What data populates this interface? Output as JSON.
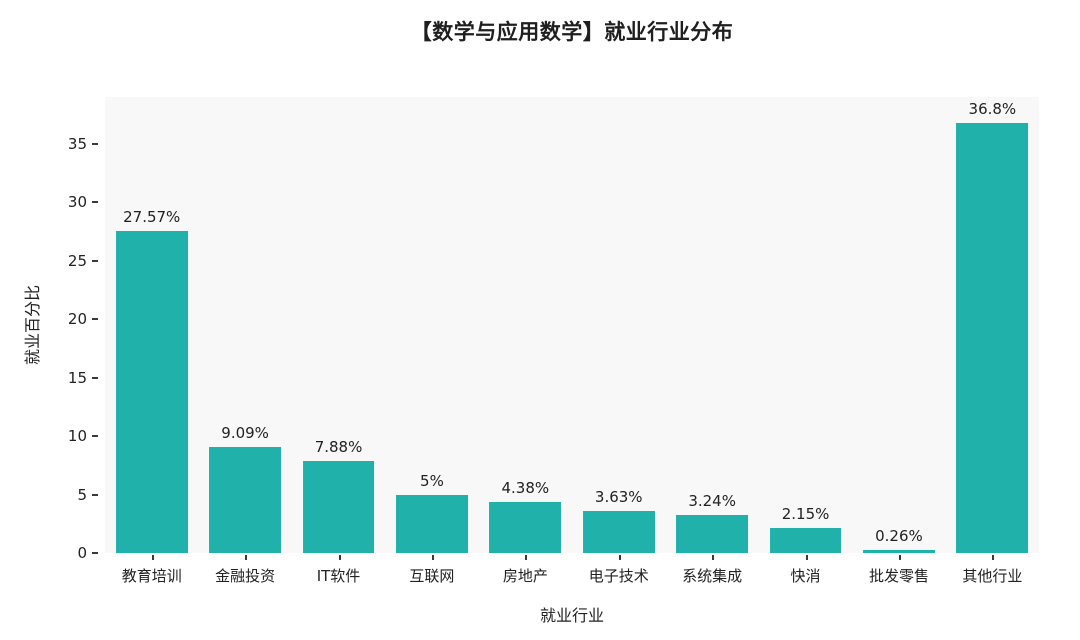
{
  "chart_data": {
    "type": "bar",
    "title": "【数学与应用数学】就业行业分布",
    "xlabel": "就业行业",
    "ylabel": "就业百分比",
    "categories": [
      "教育培训",
      "金融投资",
      "IT软件",
      "互联网",
      "房地产",
      "电子技术",
      "系统集成",
      "快消",
      "批发零售",
      "其他行业"
    ],
    "values": [
      27.57,
      9.09,
      7.88,
      5,
      4.38,
      3.63,
      3.24,
      2.15,
      0.26,
      36.8
    ],
    "value_labels": [
      "27.57%",
      "9.09%",
      "7.88%",
      "5%",
      "4.38%",
      "3.63%",
      "3.24%",
      "2.15%",
      "0.26%",
      "36.8%"
    ],
    "yticks": [
      0,
      5,
      10,
      15,
      20,
      25,
      30,
      35
    ],
    "ylim": [
      0,
      39
    ],
    "grid": false,
    "legend": "none",
    "bar_color": "#20b2aa",
    "plot_bg": "#f8f8f8",
    "text_color": "#222222"
  }
}
